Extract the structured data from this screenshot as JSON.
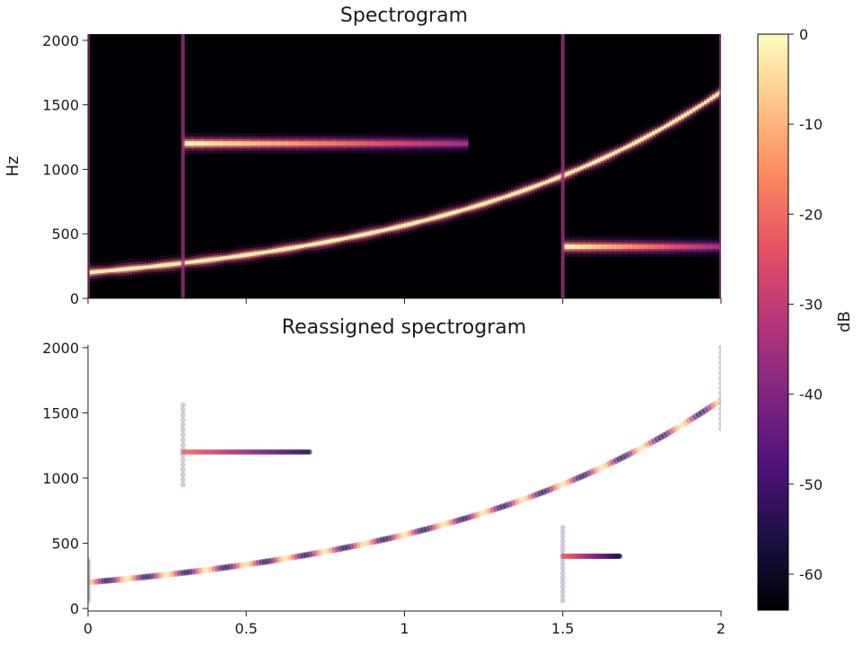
{
  "chart_data": [
    {
      "type": "heatmap",
      "title": "Spectrogram",
      "xlabel": "",
      "ylabel": "Hz",
      "xlim": [
        0,
        2
      ],
      "ylim": [
        0,
        2048
      ],
      "x_tick_labels": [],
      "y_ticks": [
        0,
        500,
        1000,
        1500,
        2000
      ],
      "y_tick_labels": [
        "0",
        "500",
        "1000",
        "1500",
        "2000"
      ],
      "colormap": "magma",
      "value_range_db": [
        -64,
        0
      ],
      "components": [
        {
          "kind": "chirp",
          "t_start": 0,
          "t_end": 2,
          "f_start": 200,
          "f_end": 1600,
          "envelope": "exponential",
          "level_db": 0
        },
        {
          "kind": "tone",
          "t_start": 0.3,
          "t_end": 1.2,
          "f": 1200,
          "level_db": 0
        },
        {
          "kind": "tone",
          "t_start": 1.5,
          "t_end": 2.0,
          "f": 400,
          "level_db": 0
        }
      ],
      "transients_s": [
        0,
        0.3,
        1.5,
        2.0
      ]
    },
    {
      "type": "scatter",
      "title": "Reassigned spectrogram",
      "xlabel": "",
      "ylabel": "",
      "xlim": [
        0,
        2
      ],
      "ylim": [
        -20,
        2020
      ],
      "x_ticks": [
        0,
        0.5,
        1,
        1.5,
        2
      ],
      "x_tick_labels": [
        "0",
        "0.5",
        "1",
        "1.5",
        "2"
      ],
      "y_ticks": [
        0,
        500,
        1000,
        1500,
        2000
      ],
      "y_tick_labels": [
        "0",
        "500",
        "1000",
        "1500",
        "2000"
      ],
      "colormap": "magma",
      "curves": [
        {
          "kind": "chirp",
          "t_start": 0,
          "t_end": 2,
          "f_start": 200,
          "f_end": 1600
        },
        {
          "kind": "tone",
          "t_start": 0.3,
          "t_end": 0.7,
          "f": 1200
        },
        {
          "kind": "tone",
          "t_start": 1.5,
          "t_end": 1.68,
          "f": 400
        }
      ],
      "vertical_scatter": [
        {
          "t": 0.0,
          "f_min": 60,
          "f_max": 370
        },
        {
          "t": 0.3,
          "f_min": 950,
          "f_max": 1560
        },
        {
          "t": 1.5,
          "f_min": 60,
          "f_max": 620
        },
        {
          "t": 2.0,
          "f_min": 1380,
          "f_max": 2000
        }
      ]
    }
  ],
  "colorbar": {
    "label": "dB",
    "range": [
      -64,
      0
    ],
    "ticks": [
      0,
      -10,
      -20,
      -30,
      -40,
      -50,
      -60
    ],
    "tick_labels": [
      "0",
      "-10",
      "-20",
      "-30",
      "-40",
      "-50",
      "-60"
    ]
  }
}
